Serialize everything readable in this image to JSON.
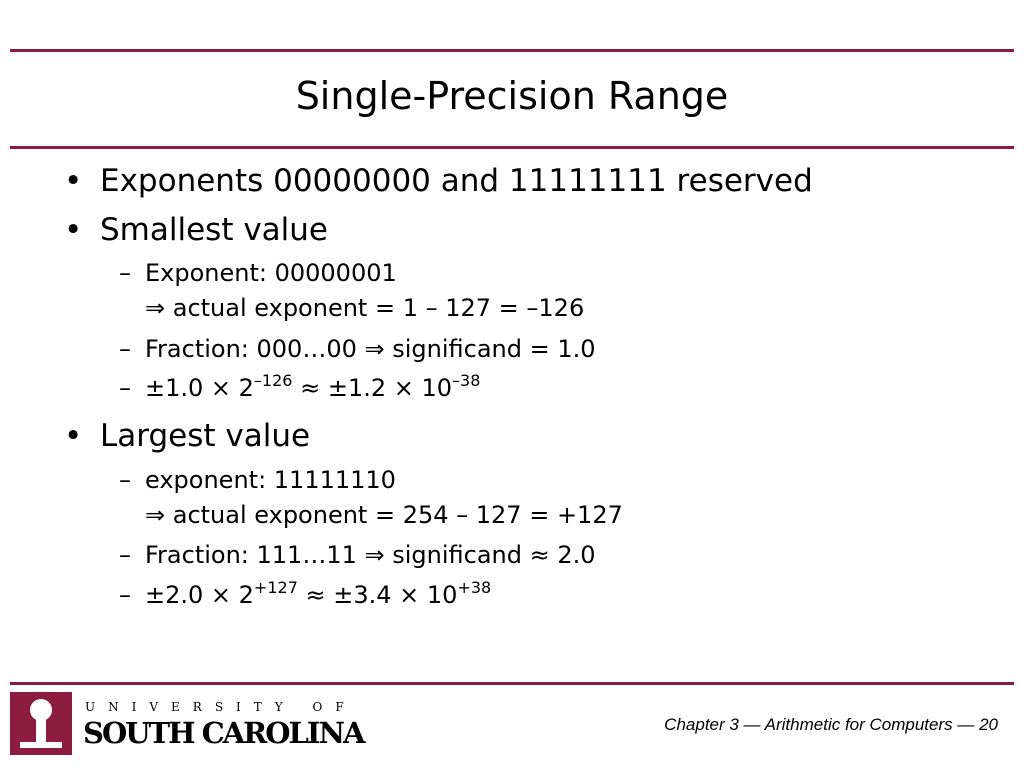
{
  "slide": {
    "title": "Single-Precision Range",
    "bullets": [
      {
        "text": "Exponents 00000000 and 11111111 reserved"
      },
      {
        "text": "Smallest value",
        "items": [
          {
            "lines": [
              "Exponent: 00000001",
              "⇒ actual exponent = 1 – 127 = –126"
            ]
          },
          {
            "lines": [
              "Fraction: 000…00 ⇒ significand = 1.0"
            ]
          },
          {
            "parts": [
              "±1.0 × 2",
              "–126",
              " ≈ ±1.2 × 10",
              "–38"
            ]
          }
        ]
      },
      {
        "text": "Largest value",
        "items": [
          {
            "lines": [
              "exponent: 11111110",
              "⇒ actual exponent = 254 – 127 = +127"
            ]
          },
          {
            "lines": [
              "Fraction: 111…11 ⇒ significand ≈ 2.0"
            ]
          },
          {
            "parts": [
              "±2.0 × 2",
              "+127",
              " ≈ ±3.4 × 10",
              "+38"
            ]
          }
        ]
      }
    ]
  },
  "footer": {
    "logo_top": "UNIVERSITY OF",
    "logo_bottom": "SOUTH CAROLINA",
    "caption": "Chapter 3 — Arithmetic for Computers — 20"
  }
}
